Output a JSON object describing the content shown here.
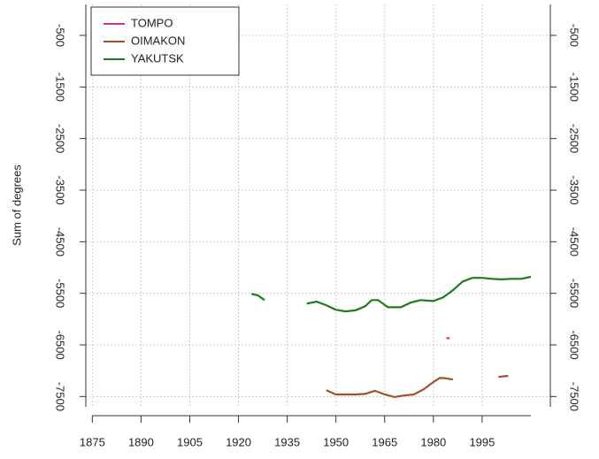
{
  "chart_data": {
    "type": "line",
    "y_label": "Sum of degrees",
    "xlim": [
      1873,
      2016
    ],
    "ylim": [
      -7700,
      100
    ],
    "xticks": [
      1875,
      1890,
      1905,
      1920,
      1935,
      1950,
      1965,
      1980,
      1995
    ],
    "yticks": [
      -500,
      -1500,
      -2500,
      -3500,
      -4500,
      -5500,
      -6500,
      -7500
    ],
    "grid": true,
    "legend": "top-left",
    "series": [
      {
        "name": "TOMPO",
        "color": "#d0309a",
        "x": [
          1984,
          1985
        ],
        "values": [
          -6370,
          -6370
        ]
      },
      {
        "name": "OIMAKON",
        "color": "#a0522d",
        "x": [
          1947,
          1950,
          1953,
          1956,
          1959,
          1962,
          1965,
          1968,
          1971,
          1974,
          1977,
          1980,
          1982,
          1984,
          1986,
          1993,
          2000,
          2003
        ],
        "values": [
          -7380,
          -7460,
          -7460,
          -7460,
          -7450,
          -7390,
          -7460,
          -7510,
          -7480,
          -7460,
          -7360,
          -7220,
          -7140,
          -7150,
          -7170,
          null,
          -7120,
          -7100
        ]
      },
      {
        "name": "YAKUTSK",
        "color": "#1f7a1f",
        "x": [
          1924,
          1926,
          1928,
          1934,
          1941,
          1944,
          1947,
          1950,
          1953,
          1956,
          1959,
          1961,
          1963,
          1966,
          1970,
          1973,
          1976,
          1980,
          1983,
          1986,
          1989,
          1992,
          1995,
          1998,
          2001,
          2004,
          2007,
          2010
        ],
        "values": [
          -5510,
          -5540,
          -5630,
          null,
          -5700,
          -5660,
          -5730,
          -5820,
          -5850,
          -5830,
          -5750,
          -5630,
          -5630,
          -5770,
          -5770,
          -5680,
          -5630,
          -5650,
          -5580,
          -5440,
          -5270,
          -5200,
          -5200,
          -5220,
          -5230,
          -5220,
          -5220,
          -5180
        ]
      }
    ]
  }
}
